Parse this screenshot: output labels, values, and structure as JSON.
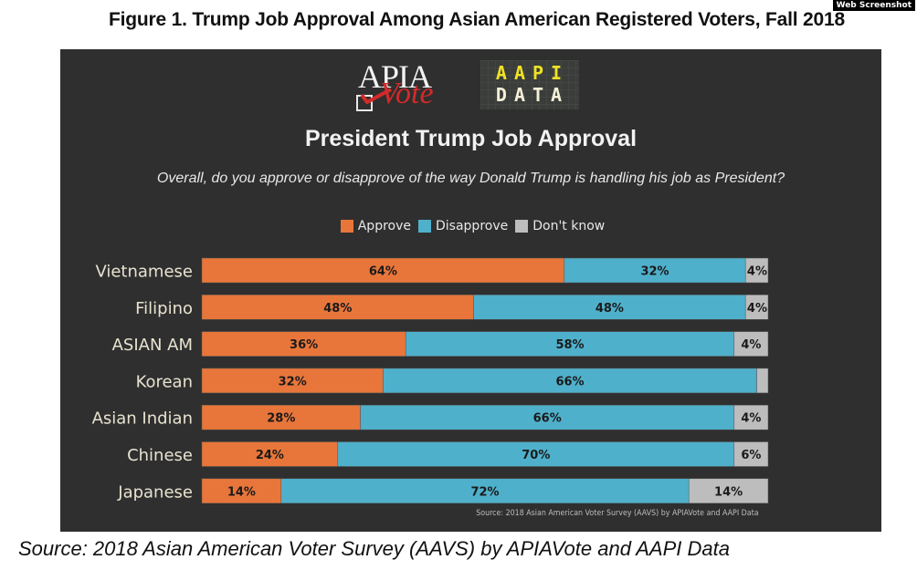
{
  "watermark": "Web Screenshot",
  "figure_title": "Figure 1.  Trump Job Approval Among Asian American Registered Voters, Fall 2018",
  "logos": {
    "apia_text": "APIA",
    "vote_text": "Vote",
    "aapi_line1": "AAPI",
    "aapi_line2": "DATA"
  },
  "colors": {
    "approve": "#e8763a",
    "disapprove": "#4fb0cb",
    "dont_know": "#bdbdbd",
    "panel": "#2f2f2f",
    "label_text": "#e8e3d0"
  },
  "source_small": "Source: 2018 Asian American Voter Survey (AAVS) by APIAVote and AAPI Data",
  "source_bottom": "Source: 2018 Asian American Voter Survey (AAVS) by APIAVote and AAPI Data",
  "chart_data": {
    "type": "bar",
    "orientation": "horizontal",
    "stacked": true,
    "title": "President Trump Job Approval",
    "subtitle": "Overall, do you approve or disapprove of the way Donald Trump is handling his job as President?",
    "legend": [
      "Approve",
      "Disapprove",
      "Don't know"
    ],
    "legend_position": "top-center",
    "categories": [
      "Vietnamese",
      "Filipino",
      "ASIAN AM",
      "Korean",
      "Asian Indian",
      "Chinese",
      "Japanese"
    ],
    "series": [
      {
        "name": "Approve",
        "values": [
          64,
          48,
          36,
          32,
          28,
          24,
          14
        ],
        "labels": [
          "64%",
          "48%",
          "36%",
          "32%",
          "28%",
          "24%",
          "14%"
        ]
      },
      {
        "name": "Disapprove",
        "values": [
          32,
          48,
          58,
          66,
          66,
          70,
          72
        ],
        "labels": [
          "32%",
          "48%",
          "58%",
          "66%",
          "66%",
          "70%",
          "72%"
        ]
      },
      {
        "name": "Don't know",
        "values": [
          4,
          4,
          4,
          2,
          4,
          6,
          14
        ],
        "labels": [
          "4%",
          "4%",
          "4%",
          "",
          "4%",
          "6%",
          "14%"
        ]
      }
    ],
    "xlim": [
      0,
      100
    ],
    "grid": false
  }
}
